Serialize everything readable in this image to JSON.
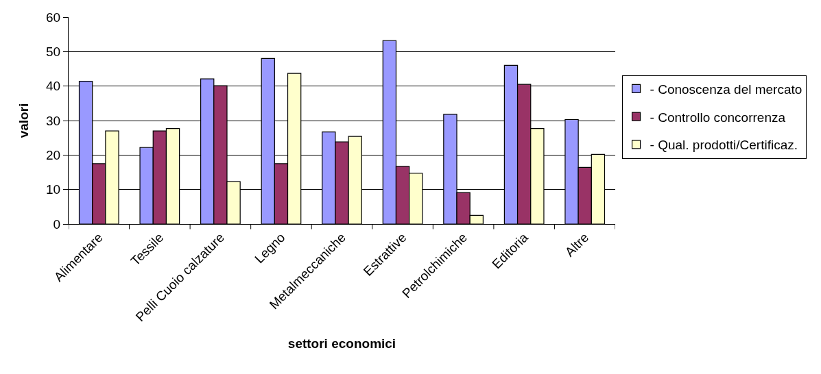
{
  "chart_data": {
    "type": "bar",
    "xlabel": "settori economici",
    "ylabel": "valori",
    "categories": [
      "Alimentare",
      "Tessile",
      "Pelli Cuoio calzature",
      "Legno",
      "Metalmeccaniche",
      "Estrattive",
      "Petrolchimiche",
      "Editoria",
      "Altre"
    ],
    "series": [
      {
        "name": "- Conoscenza del mercato",
        "color": "#9999ff",
        "values": [
          41.4,
          22.2,
          42.1,
          48.0,
          26.7,
          53.2,
          31.8,
          46.0,
          30.3
        ]
      },
      {
        "name": "- Controllo concorrenza",
        "color": "#993366",
        "values": [
          17.5,
          27.0,
          40.1,
          17.5,
          23.8,
          16.7,
          9.1,
          40.5,
          16.4
        ]
      },
      {
        "name": "- Qual. prodotti/Certificaz.",
        "color": "#ffffcc",
        "values": [
          27.0,
          27.7,
          12.3,
          43.7,
          25.4,
          14.7,
          2.5,
          27.7,
          20.2
        ]
      }
    ],
    "ylim": [
      0,
      60
    ],
    "yticks": [
      0,
      10,
      20,
      30,
      40,
      50,
      60
    ],
    "grid": "y",
    "legend": "right"
  }
}
